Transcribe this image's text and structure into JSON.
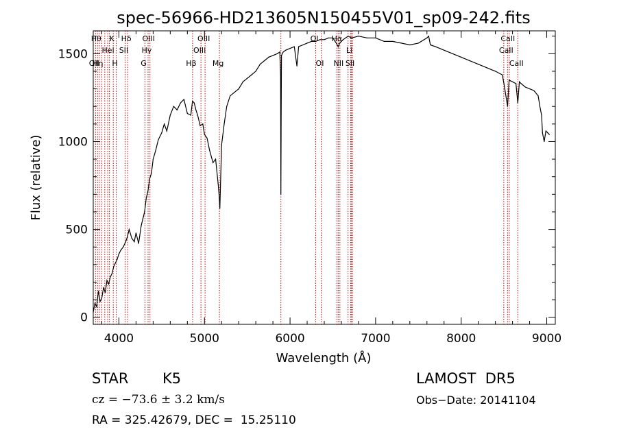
{
  "chart_data": {
    "type": "line",
    "title": "spec-56966-HD213605N150455V01_sp09-242.fits",
    "xlabel": "Wavelength (Å)",
    "ylabel": "Flux (relative)",
    "xlim": [
      3700,
      9100
    ],
    "ylim": [
      -40,
      1630
    ],
    "x_ticks": [
      4000,
      5000,
      6000,
      7000,
      8000,
      9000
    ],
    "y_ticks": [
      0,
      500,
      1000,
      1500
    ],
    "grid": false,
    "legend": "none",
    "line_color": "#000000",
    "marker_color": "#cc0000",
    "series": [
      {
        "x": [
          3700,
          3720,
          3740,
          3760,
          3780,
          3800,
          3820,
          3840,
          3860,
          3880,
          3900,
          3920,
          3940,
          3960,
          3980,
          4000,
          4020,
          4050,
          4080,
          4100,
          4120,
          4150,
          4180,
          4200,
          4230,
          4260,
          4280,
          4300,
          4320,
          4340,
          4360,
          4380,
          4400,
          4430,
          4460,
          4500,
          4530,
          4560,
          4600,
          4640,
          4680,
          4720,
          4760,
          4800,
          4840,
          4860,
          4880,
          4900,
          4920,
          4950,
          4980,
          5000,
          5030,
          5060,
          5100,
          5130,
          5160,
          5170,
          5180,
          5200,
          5230,
          5260,
          5300,
          5350,
          5400,
          5450,
          5500,
          5550,
          5600,
          5650,
          5700,
          5750,
          5800,
          5850,
          5880,
          5890,
          5893,
          5896,
          5900,
          5920,
          5950,
          6000,
          6050,
          6080,
          6100,
          6150,
          6200,
          6250,
          6300,
          6350,
          6400,
          6450,
          6500,
          6540,
          6563,
          6580,
          6620,
          6680,
          6720,
          6800,
          6900,
          7000,
          7100,
          7200,
          7300,
          7400,
          7500,
          7600,
          7620,
          7640,
          7700,
          7800,
          7900,
          8000,
          8100,
          8200,
          8300,
          8400,
          8480,
          8500,
          8542,
          8560,
          8600,
          8640,
          8662,
          8680,
          8700,
          8750,
          8800,
          8850,
          8900,
          8920,
          8940,
          8950,
          8970,
          8990,
          9010,
          9030
        ],
        "y": [
          30,
          80,
          60,
          150,
          90,
          110,
          170,
          140,
          210,
          190,
          230,
          250,
          290,
          310,
          330,
          360,
          380,
          400,
          430,
          460,
          500,
          450,
          430,
          480,
          420,
          520,
          560,
          600,
          680,
          720,
          790,
          820,
          900,
          950,
          1010,
          1050,
          1100,
          1060,
          1150,
          1200,
          1180,
          1220,
          1240,
          1160,
          1150,
          1230,
          1220,
          1180,
          1150,
          1090,
          1100,
          1040,
          1020,
          950,
          880,
          900,
          760,
          700,
          620,
          980,
          1100,
          1200,
          1260,
          1280,
          1300,
          1340,
          1360,
          1380,
          1400,
          1440,
          1460,
          1480,
          1490,
          1500,
          1510,
          1380,
          700,
          1100,
          1490,
          1510,
          1520,
          1530,
          1540,
          1430,
          1540,
          1550,
          1560,
          1570,
          1570,
          1580,
          1580,
          1590,
          1590,
          1560,
          1540,
          1560,
          1580,
          1600,
          1590,
          1600,
          1590,
          1590,
          1570,
          1570,
          1560,
          1550,
          1560,
          1590,
          1600,
          1550,
          1540,
          1520,
          1500,
          1480,
          1460,
          1440,
          1420,
          1400,
          1380,
          1330,
          1200,
          1350,
          1340,
          1330,
          1220,
          1340,
          1330,
          1310,
          1300,
          1290,
          1260,
          1200,
          1150,
          1050,
          1000,
          1060,
          1050,
          1040
        ]
      }
    ],
    "line_markers": [
      {
        "x": 3727,
        "label": "OII",
        "row": 3
      },
      {
        "x": 3750,
        "label": "Hθ",
        "row": 1
      },
      {
        "x": 3771,
        "label": "Hη",
        "row": 3
      },
      {
        "x": 3798,
        "label": "",
        "row": 0
      },
      {
        "x": 3835,
        "label": "",
        "row": 0
      },
      {
        "x": 3869,
        "label": "",
        "row": 0
      },
      {
        "x": 3889,
        "label": "HeI",
        "row": 2
      },
      {
        "x": 3934,
        "label": "K",
        "row": 1
      },
      {
        "x": 3969,
        "label": "H",
        "row": 3
      },
      {
        "x": 4072,
        "label": "SII",
        "row": 2
      },
      {
        "x": 4102,
        "label": "Hδ",
        "row": 1
      },
      {
        "x": 4305,
        "label": "G",
        "row": 3
      },
      {
        "x": 4341,
        "label": "Hγ",
        "row": 2
      },
      {
        "x": 4363,
        "label": "OIII",
        "row": 1
      },
      {
        "x": 4861,
        "label": "Hβ",
        "row": 3
      },
      {
        "x": 4959,
        "label": "OIII",
        "row": 2
      },
      {
        "x": 5007,
        "label": "OIII",
        "row": 1
      },
      {
        "x": 5175,
        "label": "Mg",
        "row": 3
      },
      {
        "x": 5893,
        "label": "",
        "row": 0
      },
      {
        "x": 6300,
        "label": "OI",
        "row": 1
      },
      {
        "x": 6364,
        "label": "OI",
        "row": 3
      },
      {
        "x": 6548,
        "label": "",
        "row": 0
      },
      {
        "x": 6563,
        "label": "Hα",
        "row": 1
      },
      {
        "x": 6583,
        "label": "NII",
        "row": 3
      },
      {
        "x": 6678,
        "label": "",
        "row": 0
      },
      {
        "x": 6708,
        "label": "Li",
        "row": 2
      },
      {
        "x": 6717,
        "label": "SII",
        "row": 3
      },
      {
        "x": 6731,
        "label": "",
        "row": 0
      },
      {
        "x": 8498,
        "label": "",
        "row": 0
      },
      {
        "x": 8542,
        "label": "CaII",
        "row": 2
      },
      {
        "x": 8562,
        "label": "CaII",
        "row": 1
      },
      {
        "x": 8662,
        "label": "CaII",
        "row": 3
      }
    ]
  },
  "info": {
    "object_class": "STAR",
    "subclass": "K5",
    "survey": "LAMOST  DR5",
    "redshift": "cz = −73.6 ± 3.2 km/s",
    "obs_date": "Obs−Date: 20141104",
    "coords": "RA = 325.42679, DEC =  15.25110"
  }
}
